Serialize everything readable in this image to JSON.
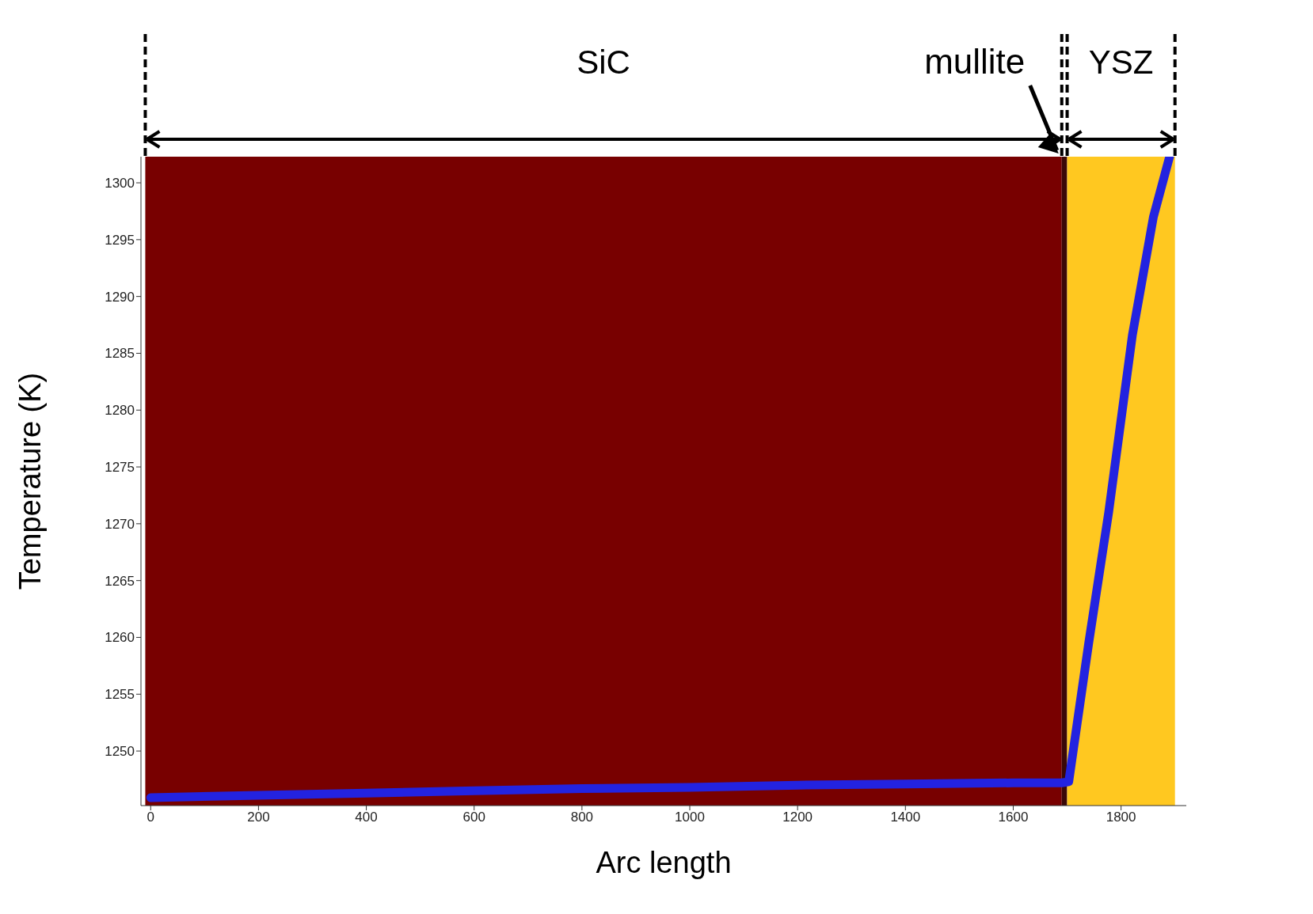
{
  "chart_data": {
    "type": "line",
    "xlabel": "Arc length",
    "ylabel": "Temperature (K)",
    "xlim": [
      -18,
      1921
    ],
    "ylim": [
      1245.2,
      1302.3
    ],
    "xticks": [
      0,
      200,
      400,
      600,
      800,
      1000,
      1200,
      1400,
      1600,
      1800
    ],
    "yticks": [
      1250,
      1255,
      1260,
      1265,
      1270,
      1275,
      1280,
      1285,
      1290,
      1295,
      1300
    ],
    "grid": false,
    "legend": false,
    "marker": "none",
    "line_style": "solid",
    "series": [
      {
        "color": "#2323e0",
        "x": [
          0,
          200,
          400,
          600,
          800,
          1000,
          1200,
          1400,
          1600,
          1690,
          1703,
          1740,
          1777,
          1821,
          1860,
          1890
        ],
        "values": [
          1245.9,
          1246.1,
          1246.3,
          1246.5,
          1246.7,
          1246.8,
          1247.0,
          1247.1,
          1247.2,
          1247.2,
          1247.3,
          1259.5,
          1271.0,
          1286.6,
          1297.0,
          1302.3
        ]
      }
    ],
    "bands": [
      {
        "axis": "x",
        "from": -10,
        "to": 1690,
        "label": "SiC",
        "color": "#780000"
      },
      {
        "axis": "x",
        "from": 1690,
        "to": 1700,
        "label": "mullite",
        "color": "#3a0808"
      },
      {
        "axis": "x",
        "from": 1700,
        "to": 1900,
        "label": "YSZ",
        "color": "#ffc820"
      }
    ]
  }
}
